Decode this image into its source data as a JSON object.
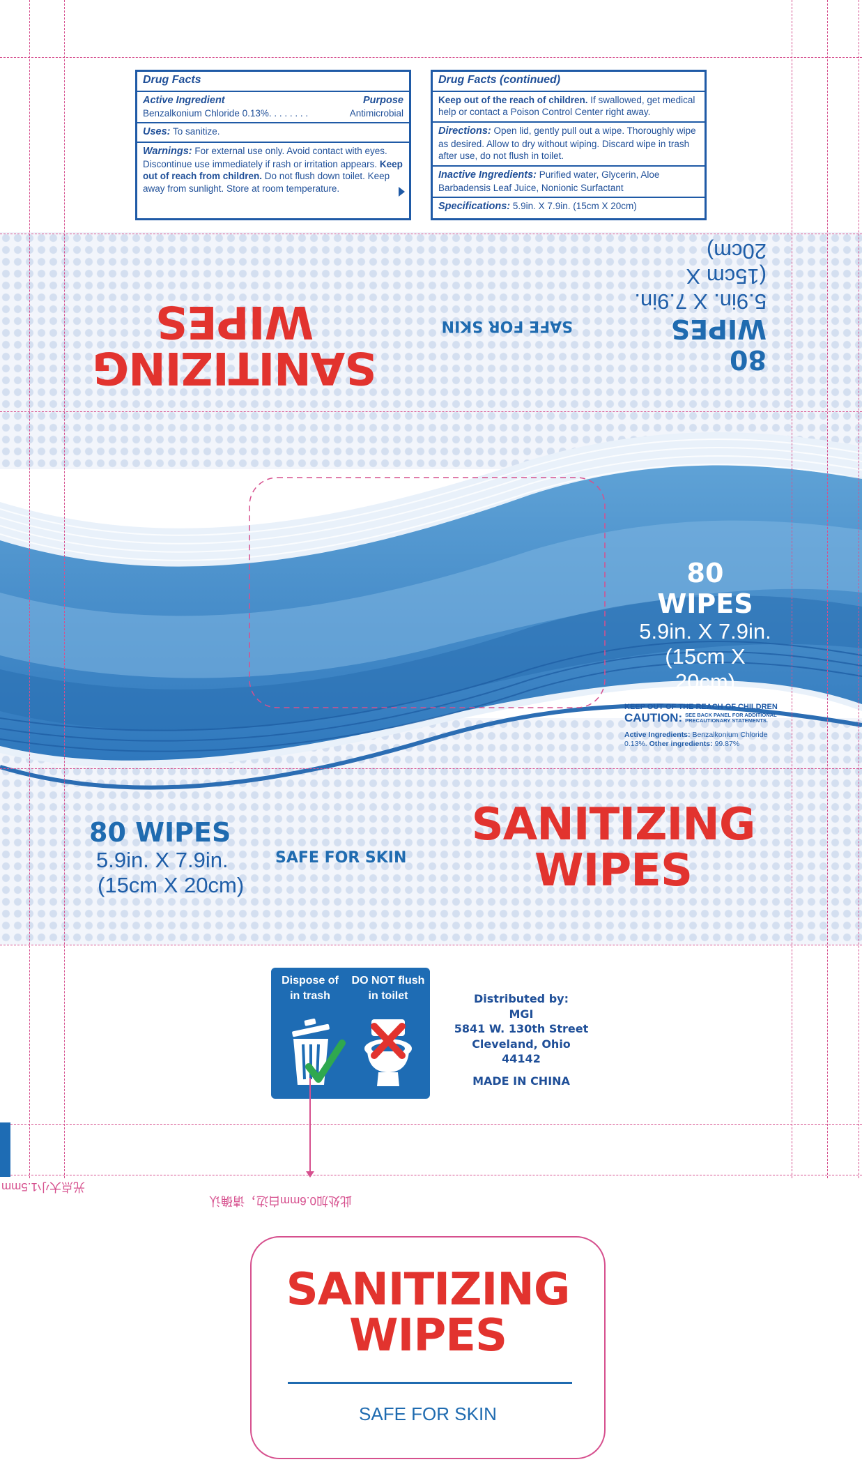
{
  "drug_facts": {
    "title": "Drug Facts",
    "active_ingredient_label": "Active Ingredient",
    "purpose_label": "Purpose",
    "ingredient_line": "Benzalkonium Chloride 0.13%. . . . . . . .",
    "ingredient_purpose": "Antimicrobial",
    "uses_label": "Uses:",
    "uses_text": "To sanitize.",
    "warnings_label": "Warnings:",
    "warnings_text_1": "For external use only. Avoid contact with eyes. Discontinue use immediately if rash or irritation appears.",
    "warnings_bold": "Keep out of reach from children.",
    "warnings_text_2": "Do not flush down toilet. Keep away from sunlight. Store at room temperature."
  },
  "drug_facts_continued": {
    "title": "Drug Facts (continued)",
    "keep_out_bold": "Keep out of the reach of children.",
    "keep_out_text": "If swallowed, get medical help or contact a Poison Control Center right away.",
    "directions_label": "Directions:",
    "directions_text": "Open lid, gently pull out a wipe. Thoroughly wipe as desired. Allow to dry without wiping. Discard wipe in trash after use, do not flush in toilet.",
    "inactive_label": "Inactive Ingredients:",
    "inactive_text": "Purified water, Glycerin, Aloe Barbadensis Leaf Juice, Nonionic Surfactant",
    "spec_label": "Specifications:",
    "spec_text": "5.9in. X 7.9in. (15cm X 20cm)"
  },
  "product": {
    "brand_line1": "SANITIZING",
    "brand_line2": "WIPES",
    "tagline": "SAFE FOR SKIN",
    "count": "80 WIPES",
    "size_in": "5.9in. X 7.9in.",
    "size_cm": "(15cm X 20cm)"
  },
  "caution": {
    "keep_out": "KEEP OUT OF THE REACH OF CHILDREN",
    "caution_word": "CAUTION:",
    "see_back": "SEE BACK PANEL FOR ADDITIONAL PRECAUTIONARY STATEMENTS.",
    "active_label": "Active Ingredients:",
    "active_text": "Benzalkonium Chloride 0.13%.",
    "other_label": "Other ingredients:",
    "other_text": "99.87%"
  },
  "disposal": {
    "dispose_label": "Dispose of in trash",
    "no_flush_label": "DO NOT flush in toilet"
  },
  "distributor": {
    "label": "Distributed by:",
    "name": "MGI",
    "street": "5841 W. 130th Street",
    "city": "Cleveland, Ohio 44142",
    "origin": "MADE IN CHINA"
  },
  "print_notes": {
    "note_left": "光点大小1.5mm",
    "note_center": "此处加0.6mm白边，请确认"
  },
  "colors": {
    "brand_red": "#e2332e",
    "brand_blue": "#1f6bb0",
    "dieline_pink": "#d6508e"
  }
}
